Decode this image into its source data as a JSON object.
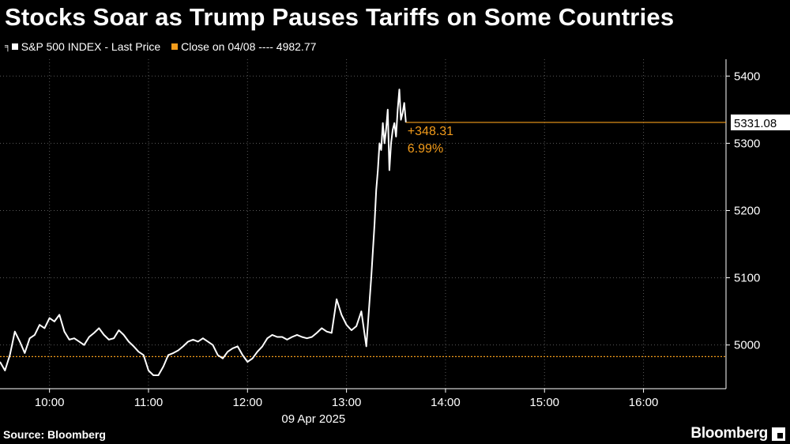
{
  "header": {
    "title": "Stocks Soar as Trump Pauses Tariffs on Some Countries"
  },
  "legend": {
    "series_label": "S&P 500 INDEX - Last Price",
    "reference_label": "Close on 04/08 ---- 4982.77"
  },
  "footer": {
    "source": "Source: Bloomberg",
    "brand": "Bloomberg"
  },
  "colors": {
    "background": "#000000",
    "series": "#ffffff",
    "reference": "#f39c1b"
  },
  "chart_data": {
    "type": "line",
    "title": "Stocks Soar as Trump Pauses Tariffs on Some Countries",
    "xlabel": "09 Apr 2025",
    "ylabel": "",
    "x_ticks": [
      "10:00",
      "11:00",
      "12:00",
      "13:00",
      "14:00",
      "15:00",
      "16:00"
    ],
    "x_range": [
      "09:30",
      "16:50"
    ],
    "ylim": [
      4935,
      5425
    ],
    "y_ticks": [
      5000,
      5100,
      5200,
      5300,
      5400
    ],
    "grid": true,
    "legend_position": "top-left",
    "reference_line": {
      "label": "Close on 04/08",
      "value": 4982.77
    },
    "last_value": {
      "value": 5331.08,
      "label": "5331.08"
    },
    "change_annotation": {
      "points": "+348.31",
      "percent": "6.99%"
    },
    "series": [
      {
        "name": "S&P 500 INDEX - Last Price",
        "x": [
          "09:30",
          "09:33",
          "09:36",
          "09:39",
          "09:42",
          "09:45",
          "09:48",
          "09:51",
          "09:54",
          "09:57",
          "10:00",
          "10:03",
          "10:06",
          "10:09",
          "10:12",
          "10:15",
          "10:18",
          "10:21",
          "10:24",
          "10:27",
          "10:30",
          "10:33",
          "10:36",
          "10:39",
          "10:42",
          "10:45",
          "10:48",
          "10:51",
          "10:54",
          "10:57",
          "11:00",
          "11:03",
          "11:06",
          "11:09",
          "11:12",
          "11:15",
          "11:18",
          "11:21",
          "11:24",
          "11:27",
          "11:30",
          "11:33",
          "11:36",
          "11:39",
          "11:42",
          "11:45",
          "11:48",
          "11:51",
          "11:54",
          "11:57",
          "12:00",
          "12:03",
          "12:06",
          "12:09",
          "12:12",
          "12:15",
          "12:18",
          "12:21",
          "12:24",
          "12:27",
          "12:30",
          "12:33",
          "12:36",
          "12:39",
          "12:42",
          "12:45",
          "12:48",
          "12:51",
          "12:54",
          "12:57",
          "13:00",
          "13:03",
          "13:06",
          "13:09",
          "13:12",
          "13:15",
          "13:17",
          "13:18",
          "13:19",
          "13:20",
          "13:21",
          "13:22",
          "13:23",
          "13:24",
          "13:25",
          "13:26",
          "13:27",
          "13:28",
          "13:29",
          "13:30",
          "13:31",
          "13:32",
          "13:33",
          "13:34",
          "13:35",
          "13:36"
        ],
        "values": [
          4975,
          4962,
          4985,
          5020,
          5005,
          4988,
          5010,
          5015,
          5030,
          5025,
          5040,
          5035,
          5045,
          5020,
          5008,
          5010,
          5005,
          5000,
          5012,
          5018,
          5025,
          5015,
          5008,
          5010,
          5022,
          5015,
          5005,
          4998,
          4990,
          4985,
          4962,
          4955,
          4955,
          4968,
          4985,
          4988,
          4992,
          4998,
          5005,
          5008,
          5005,
          5010,
          5005,
          5000,
          4985,
          4980,
          4990,
          4995,
          4998,
          4985,
          4975,
          4980,
          4990,
          4998,
          5010,
          5015,
          5012,
          5012,
          5008,
          5012,
          5015,
          5012,
          5010,
          5012,
          5018,
          5025,
          5020,
          5018,
          5068,
          5045,
          5030,
          5022,
          5028,
          5050,
          4998,
          5100,
          5180,
          5230,
          5260,
          5300,
          5290,
          5330,
          5300,
          5320,
          5350,
          5260,
          5300,
          5320,
          5330,
          5310,
          5350,
          5380,
          5335,
          5345,
          5360,
          5331
        ]
      }
    ]
  }
}
